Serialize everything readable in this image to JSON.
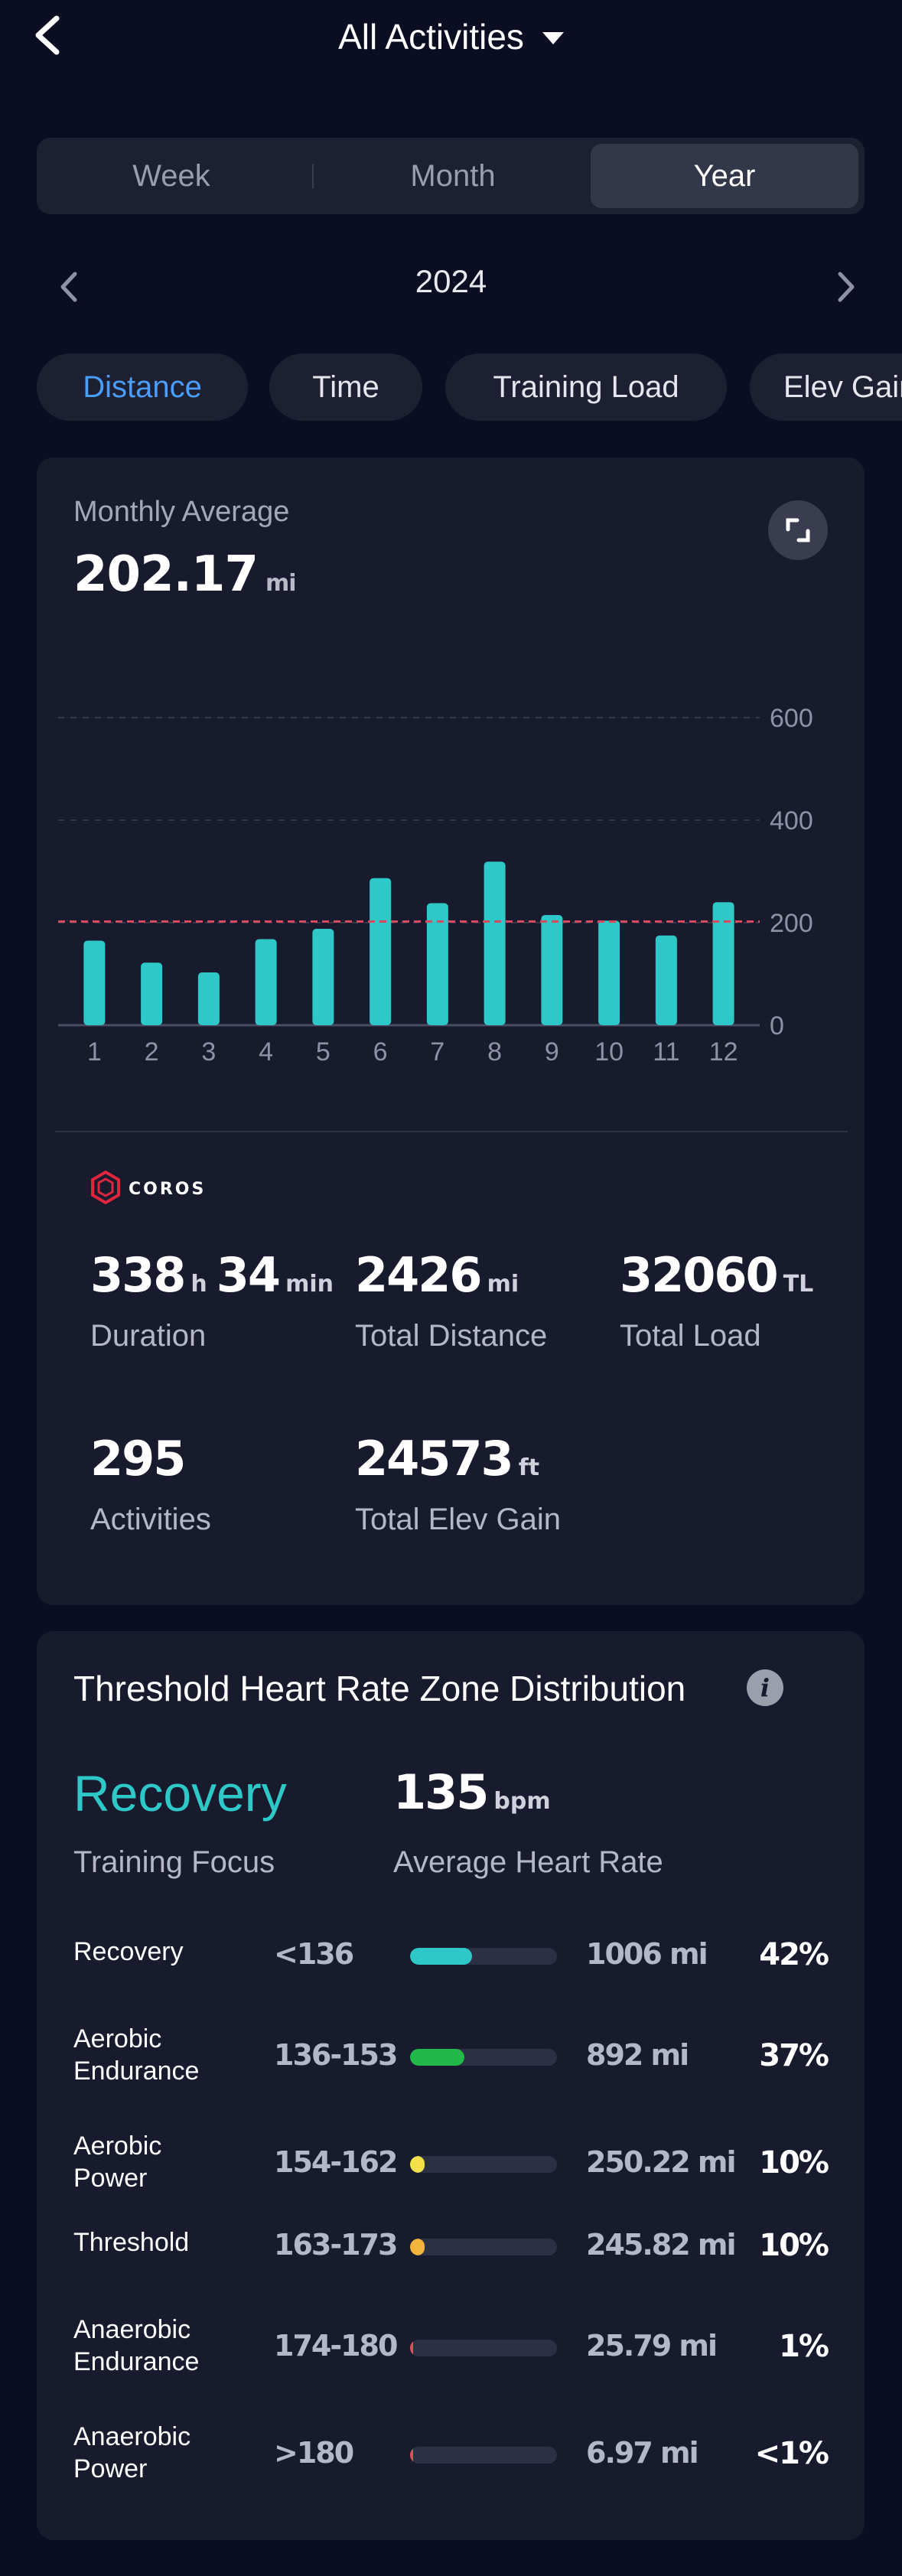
{
  "header": {
    "title": "All Activities"
  },
  "period_tabs": [
    {
      "label": "Week",
      "active": false
    },
    {
      "label": "Month",
      "active": false
    },
    {
      "label": "Year",
      "active": true
    }
  ],
  "year": "2024",
  "metric_pills": [
    {
      "label": "Distance",
      "active": true
    },
    {
      "label": "Time",
      "active": false
    },
    {
      "label": "Training Load",
      "active": false
    },
    {
      "label": "Elev Gain",
      "active": false
    }
  ],
  "summary": {
    "label": "Monthly Average",
    "value": "202.17",
    "unit": "mi"
  },
  "chart_data": {
    "type": "bar",
    "categories": [
      "1",
      "2",
      "3",
      "4",
      "5",
      "6",
      "7",
      "8",
      "9",
      "10",
      "11",
      "12"
    ],
    "values": [
      165,
      122,
      103,
      168,
      188,
      287,
      238,
      319,
      215,
      204,
      175,
      240
    ],
    "average": 202.17,
    "ylim": [
      0,
      600
    ],
    "yticks": [
      "600",
      "400",
      "200",
      "0"
    ],
    "grid": true,
    "colors": {
      "bar": "#2fc8c8",
      "average_line": "#d64a5e",
      "grid": "#34384c"
    }
  },
  "brand": {
    "name": "COROS",
    "color": "#e0263c"
  },
  "stats": {
    "duration": {
      "hours": "338",
      "h_unit": "h",
      "minutes": "34",
      "min_unit": "min",
      "label": "Duration"
    },
    "total_distance": {
      "value": "2426",
      "unit": "mi",
      "label": "Total Distance"
    },
    "total_load": {
      "value": "32060",
      "unit": "TL",
      "label": "Total Load"
    },
    "activities": {
      "value": "295",
      "label": "Activities"
    },
    "elev_gain": {
      "value": "24573",
      "unit": "ft",
      "label": "Total Elev Gain"
    }
  },
  "zones": {
    "title": "Threshold Heart Rate Zone Distribution",
    "focus": {
      "value": "Recovery",
      "label": "Training Focus"
    },
    "avg_hr": {
      "value": "135",
      "unit": "bpm",
      "label": "Average Heart Rate"
    },
    "rows": [
      {
        "line1": "Recovery",
        "line2": "",
        "range": "<136",
        "distance": "1006 mi",
        "percent": "42%",
        "fraction": 0.42,
        "color": "#2fc8c8"
      },
      {
        "line1": "Aerobic",
        "line2": "Endurance",
        "range": "136-153",
        "distance": "892 mi",
        "percent": "37%",
        "fraction": 0.37,
        "color": "#22b84a"
      },
      {
        "line1": "Aerobic",
        "line2": "Power",
        "range": "154-162",
        "distance": "250.22 mi",
        "percent": "10%",
        "fraction": 0.1,
        "color": "#f4e04a"
      },
      {
        "line1": "Threshold",
        "line2": "",
        "range": "163-173",
        "distance": "245.82 mi",
        "percent": "10%",
        "fraction": 0.1,
        "color": "#f2b43a"
      },
      {
        "line1": "Anaerobic",
        "line2": "Endurance",
        "range": "174-180",
        "distance": "25.79 mi",
        "percent": "1%",
        "fraction": 0.01,
        "color": "#e0505a"
      },
      {
        "line1": "Anaerobic",
        "line2": "Power",
        "range": ">180",
        "distance": "6.97 mi",
        "percent": "<1%",
        "fraction": 0.005,
        "color": "#e0505a"
      }
    ]
  }
}
